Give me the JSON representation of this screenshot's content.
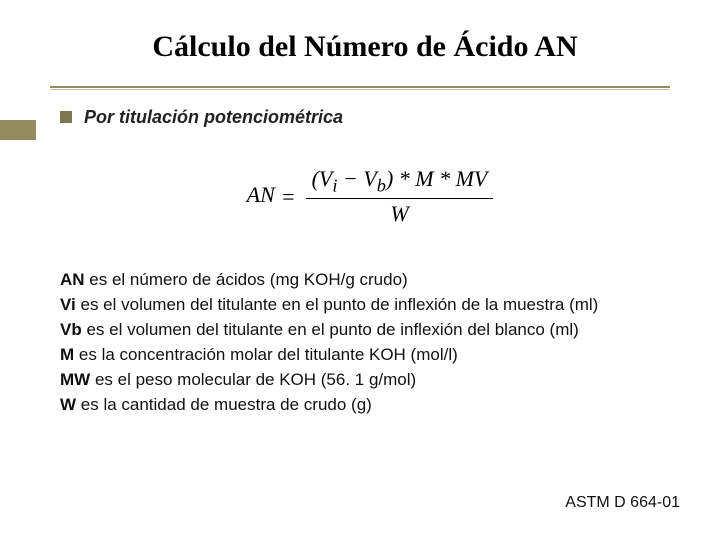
{
  "colors": {
    "accent": "#938c5f",
    "bullet": "#7b7751",
    "underline_secondary": "#c7c2a4",
    "text": "#000000",
    "background": "#ffffff"
  },
  "title": "Cálculo del Número de Ácido AN",
  "subtitle": "Por titulación potenciométrica",
  "formula": {
    "lhs": "AN",
    "numerator": "(Vᵢ − V_b) * M * MV",
    "denominator": "W"
  },
  "definitions": [
    {
      "term": "AN",
      "text": " es el número de ácidos (mg KOH/g crudo)"
    },
    {
      "term": "Vi",
      "text": " es el volumen del titulante en el punto de inflexión de la muestra (ml)"
    },
    {
      "term": "Vb",
      "text": " es el volumen del titulante en el punto de inflexión del blanco (ml)"
    },
    {
      "term": "M",
      "text": " es la concentración molar del titulante KOH (mol/l)"
    },
    {
      "term": "MW",
      "text": " es el peso molecular de KOH (56. 1 g/mol)"
    },
    {
      "term": "W",
      "text": " es la cantidad de muestra de crudo (g)"
    }
  ],
  "reference": "ASTM D 664-01",
  "typography": {
    "title_font": "Georgia serif",
    "title_size_pt": 22,
    "body_font": "Verdana sans-serif",
    "body_size_pt": 13,
    "formula_font": "Times New Roman italic",
    "formula_size_pt": 16
  }
}
